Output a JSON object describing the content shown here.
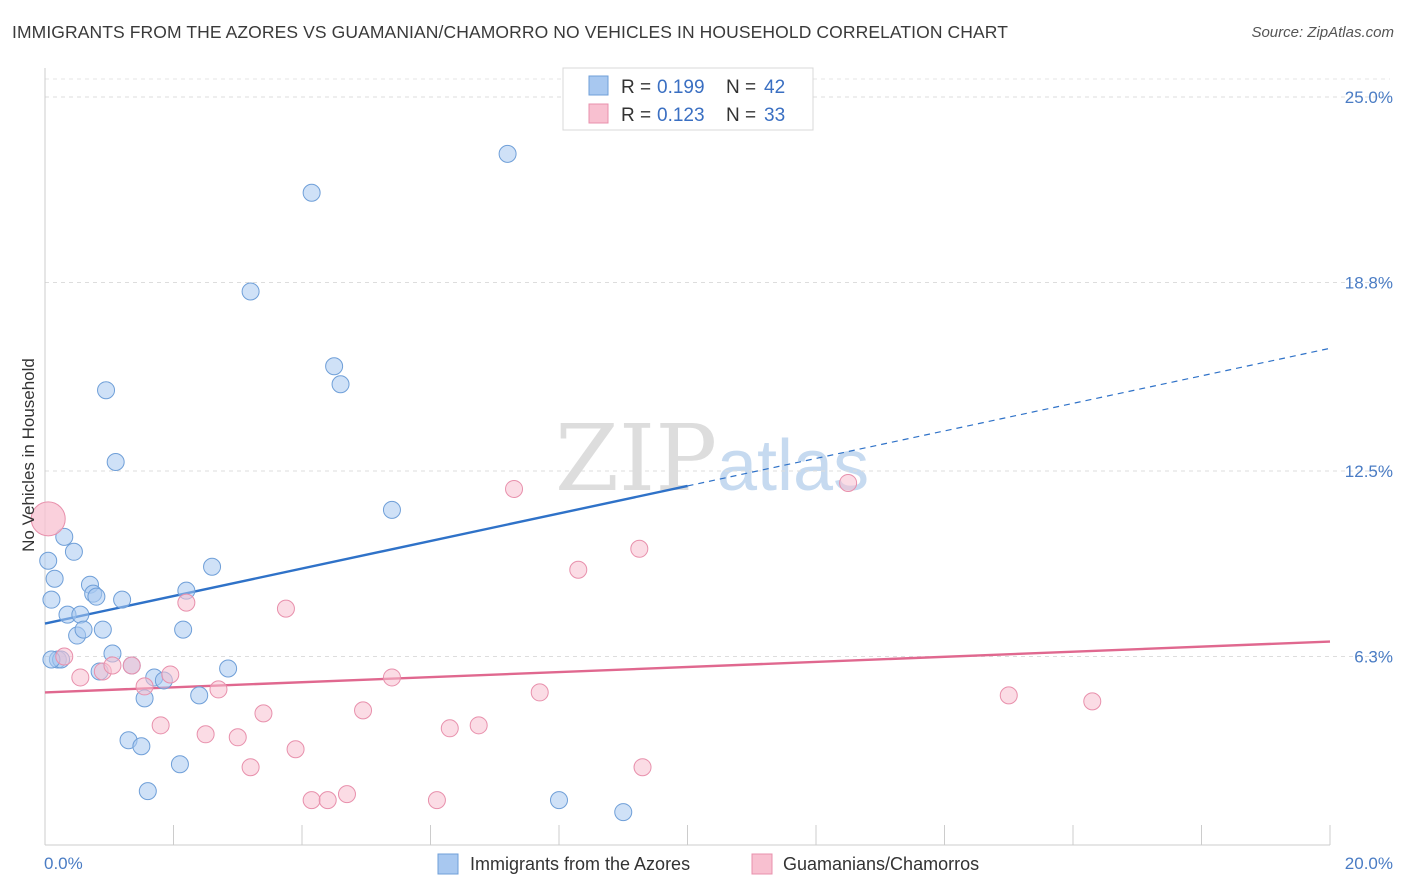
{
  "title": "IMMIGRANTS FROM THE AZORES VS GUAMANIAN/CHAMORRO NO VEHICLES IN HOUSEHOLD CORRELATION CHART",
  "source": "Source: ZipAtlas.com",
  "watermark": {
    "zip": "ZIP",
    "atlas": "atlas"
  },
  "legend": {
    "rows": [
      {
        "r_label": "R =",
        "r_value": "0.199",
        "n_label": "N =",
        "n_value": "42",
        "color": "#a8c8f0",
        "stroke": "#6f9fd8"
      },
      {
        "r_label": "R =",
        "r_value": "0.123",
        "n_label": "N =",
        "n_value": "33",
        "color": "#f8c0d0",
        "stroke": "#e890ac"
      }
    ]
  },
  "chart_data": {
    "type": "scatter",
    "ylabel": "No Vehicles in Household",
    "xlim": [
      0,
      20
    ],
    "ylim": [
      0,
      25
    ],
    "x_tick_labels": [
      "0.0%",
      "20.0%"
    ],
    "y_ticks": [
      6.3,
      12.5,
      18.8,
      25.0
    ],
    "y_tick_labels": [
      "6.3%",
      "12.5%",
      "18.8%",
      "25.0%"
    ],
    "grid": true,
    "series": [
      {
        "name": "Immigrants from the Azores",
        "color": "#a8c8f0",
        "stroke": "#6f9fd8",
        "line_color": "#2f72c8",
        "trend": {
          "x0": 0,
          "y0": 7.4,
          "x1": 10,
          "y1": 12.0,
          "dash_to_x": 20,
          "dash_to_y": 16.6
        },
        "points": [
          [
            0.05,
            9.5
          ],
          [
            0.1,
            8.2
          ],
          [
            0.15,
            8.9
          ],
          [
            0.2,
            6.2
          ],
          [
            0.25,
            6.2
          ],
          [
            0.3,
            10.3
          ],
          [
            0.35,
            7.7
          ],
          [
            0.45,
            9.8
          ],
          [
            0.5,
            7.0
          ],
          [
            0.55,
            7.7
          ],
          [
            0.6,
            7.2
          ],
          [
            0.7,
            8.7
          ],
          [
            0.75,
            8.4
          ],
          [
            0.8,
            8.3
          ],
          [
            0.85,
            5.8
          ],
          [
            0.9,
            7.2
          ],
          [
            0.95,
            15.2
          ],
          [
            1.05,
            6.4
          ],
          [
            1.1,
            12.8
          ],
          [
            1.2,
            8.2
          ],
          [
            1.3,
            3.5
          ],
          [
            1.35,
            6.0
          ],
          [
            1.5,
            3.3
          ],
          [
            1.55,
            4.9
          ],
          [
            1.6,
            1.8
          ],
          [
            1.7,
            5.6
          ],
          [
            1.85,
            5.5
          ],
          [
            2.1,
            2.7
          ],
          [
            2.15,
            7.2
          ],
          [
            2.2,
            8.5
          ],
          [
            2.4,
            5.0
          ],
          [
            2.6,
            9.3
          ],
          [
            2.85,
            5.9
          ],
          [
            3.2,
            18.5
          ],
          [
            4.15,
            21.8
          ],
          [
            4.5,
            16.0
          ],
          [
            4.6,
            15.4
          ],
          [
            5.4,
            11.2
          ],
          [
            7.2,
            23.1
          ],
          [
            8.0,
            1.5
          ],
          [
            9.0,
            1.1
          ],
          [
            0.1,
            6.2
          ]
        ]
      },
      {
        "name": "Guamanians/Chamorros",
        "color": "#f8c0d0",
        "stroke": "#e890ac",
        "line_color": "#e0688f",
        "trend": {
          "x0": 0,
          "y0": 5.1,
          "x1": 20,
          "y1": 6.8
        },
        "points": [
          [
            0.05,
            10.9
          ],
          [
            0.3,
            6.3
          ],
          [
            0.55,
            5.6
          ],
          [
            0.9,
            5.8
          ],
          [
            1.05,
            6.0
          ],
          [
            1.35,
            6.0
          ],
          [
            1.55,
            5.3
          ],
          [
            1.8,
            4.0
          ],
          [
            1.95,
            5.7
          ],
          [
            2.2,
            8.1
          ],
          [
            2.5,
            3.7
          ],
          [
            2.7,
            5.2
          ],
          [
            3.0,
            3.6
          ],
          [
            3.2,
            2.6
          ],
          [
            3.4,
            4.4
          ],
          [
            3.75,
            7.9
          ],
          [
            3.9,
            3.2
          ],
          [
            4.15,
            1.5
          ],
          [
            4.4,
            1.5
          ],
          [
            4.7,
            1.7
          ],
          [
            4.95,
            4.5
          ],
          [
            5.4,
            5.6
          ],
          [
            6.1,
            1.5
          ],
          [
            6.3,
            3.9
          ],
          [
            6.75,
            4.0
          ],
          [
            7.3,
            11.9
          ],
          [
            7.7,
            5.1
          ],
          [
            8.3,
            9.2
          ],
          [
            9.25,
            9.9
          ],
          [
            9.3,
            2.6
          ],
          [
            12.5,
            12.1
          ],
          [
            15.0,
            5.0
          ],
          [
            16.3,
            4.8
          ]
        ]
      }
    ]
  }
}
